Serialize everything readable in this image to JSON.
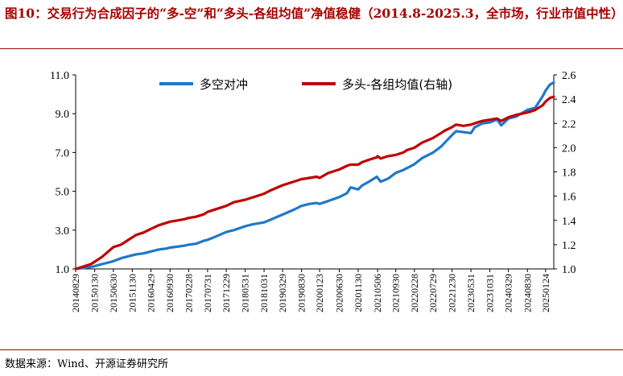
{
  "title": "图10：交易行为合成因子的“多-空”和“多头-各组均值”净值稳健（2014.8-2025.3，全市场，行业市值中性）",
  "source": "数据来源：Wind、开源证券研究所",
  "chart_data": {
    "type": "line",
    "x_ticks": [
      "20140829",
      "20150130",
      "20150630",
      "20151130",
      "20160429",
      "20160930",
      "20170228",
      "20170731",
      "20171229",
      "20180531",
      "20181031",
      "20190329",
      "20190830",
      "20200123",
      "20200630",
      "20201130",
      "20210506",
      "20210930",
      "20220228",
      "20220729",
      "20221230",
      "20230531",
      "20231031",
      "20240329",
      "20240830",
      "20250124"
    ],
    "x_range": [
      "20140829",
      "20250331"
    ],
    "y_left": {
      "range": [
        1.0,
        11.0
      ],
      "ticks": [
        1.0,
        3.0,
        5.0,
        7.0,
        9.0,
        11.0
      ]
    },
    "y_right": {
      "range": [
        1.0,
        2.6
      ],
      "ticks": [
        1.0,
        1.2,
        1.4,
        1.6,
        1.8,
        2.0,
        2.2,
        2.4,
        2.6
      ]
    },
    "grid": false,
    "legend_position": "top",
    "series": [
      {
        "name": "多空对冲",
        "axis": "left",
        "color": "#1f78c8",
        "points": [
          [
            "20140829",
            1.0
          ],
          [
            "20141031",
            1.05
          ],
          [
            "20141231",
            1.1
          ],
          [
            "20150130",
            1.15
          ],
          [
            "20150331",
            1.25
          ],
          [
            "20150630",
            1.4
          ],
          [
            "20150831",
            1.55
          ],
          [
            "20151030",
            1.65
          ],
          [
            "20151130",
            1.7
          ],
          [
            "20151231",
            1.75
          ],
          [
            "20160229",
            1.8
          ],
          [
            "20160429",
            1.9
          ],
          [
            "20160630",
            2.0
          ],
          [
            "20160831",
            2.05
          ],
          [
            "20160930",
            2.1
          ],
          [
            "20161130",
            2.15
          ],
          [
            "20170126",
            2.2
          ],
          [
            "20170228",
            2.25
          ],
          [
            "20170428",
            2.3
          ],
          [
            "20170630",
            2.45
          ],
          [
            "20170731",
            2.5
          ],
          [
            "20170929",
            2.65
          ],
          [
            "20171229",
            2.9
          ],
          [
            "20180228",
            3.0
          ],
          [
            "20180531",
            3.2
          ],
          [
            "20180731",
            3.3
          ],
          [
            "20181031",
            3.4
          ],
          [
            "20181228",
            3.55
          ],
          [
            "20190329",
            3.8
          ],
          [
            "20190628",
            4.05
          ],
          [
            "20190830",
            4.25
          ],
          [
            "20191031",
            4.35
          ],
          [
            "20191231",
            4.4
          ],
          [
            "20200123",
            4.35
          ],
          [
            "20200331",
            4.5
          ],
          [
            "20200630",
            4.7
          ],
          [
            "20200831",
            4.9
          ],
          [
            "20200930",
            5.2
          ],
          [
            "20201130",
            5.1
          ],
          [
            "20201231",
            5.3
          ],
          [
            "20210226",
            5.5
          ],
          [
            "20210430",
            5.75
          ],
          [
            "20210506",
            5.7
          ],
          [
            "20210531",
            5.5
          ],
          [
            "20210730",
            5.65
          ],
          [
            "20210930",
            5.95
          ],
          [
            "20211130",
            6.1
          ],
          [
            "20211231",
            6.2
          ],
          [
            "20220228",
            6.4
          ],
          [
            "20220429",
            6.7
          ],
          [
            "20220729",
            7.0
          ],
          [
            "20220930",
            7.3
          ],
          [
            "20221031",
            7.5
          ],
          [
            "20221230",
            7.9
          ],
          [
            "20230131",
            8.1
          ],
          [
            "20230331",
            8.05
          ],
          [
            "20230531",
            8.0
          ],
          [
            "20230630",
            8.3
          ],
          [
            "20230831",
            8.5
          ],
          [
            "20231031",
            8.55
          ],
          [
            "20231229",
            8.7
          ],
          [
            "20240131",
            8.4
          ],
          [
            "20240329",
            8.75
          ],
          [
            "20240531",
            8.85
          ],
          [
            "20240830",
            9.2
          ],
          [
            "20241031",
            9.3
          ],
          [
            "20241231",
            9.9
          ],
          [
            "20250124",
            10.2
          ],
          [
            "20250228",
            10.5
          ],
          [
            "20250331",
            10.6
          ]
        ]
      },
      {
        "name": "多头-各组均值(右轴)",
        "axis": "right",
        "color": "#c00000",
        "points": [
          [
            "20140829",
            1.0
          ],
          [
            "20141031",
            1.02
          ],
          [
            "20141231",
            1.04
          ],
          [
            "20150130",
            1.06
          ],
          [
            "20150331",
            1.1
          ],
          [
            "20150630",
            1.18
          ],
          [
            "20150831",
            1.2
          ],
          [
            "20151030",
            1.24
          ],
          [
            "20151130",
            1.26
          ],
          [
            "20151231",
            1.28
          ],
          [
            "20160229",
            1.3
          ],
          [
            "20160429",
            1.33
          ],
          [
            "20160630",
            1.36
          ],
          [
            "20160831",
            1.38
          ],
          [
            "20160930",
            1.39
          ],
          [
            "20161130",
            1.4
          ],
          [
            "20170126",
            1.41
          ],
          [
            "20170228",
            1.42
          ],
          [
            "20170428",
            1.43
          ],
          [
            "20170630",
            1.45
          ],
          [
            "20170731",
            1.47
          ],
          [
            "20170929",
            1.49
          ],
          [
            "20171229",
            1.52
          ],
          [
            "20180228",
            1.55
          ],
          [
            "20180531",
            1.57
          ],
          [
            "20180731",
            1.59
          ],
          [
            "20181031",
            1.62
          ],
          [
            "20181228",
            1.65
          ],
          [
            "20190329",
            1.69
          ],
          [
            "20190628",
            1.72
          ],
          [
            "20190830",
            1.74
          ],
          [
            "20191031",
            1.75
          ],
          [
            "20191231",
            1.76
          ],
          [
            "20200123",
            1.75
          ],
          [
            "20200331",
            1.79
          ],
          [
            "20200630",
            1.82
          ],
          [
            "20200831",
            1.85
          ],
          [
            "20200930",
            1.86
          ],
          [
            "20201130",
            1.86
          ],
          [
            "20201231",
            1.88
          ],
          [
            "20210226",
            1.9
          ],
          [
            "20210430",
            1.92
          ],
          [
            "20210506",
            1.93
          ],
          [
            "20210531",
            1.91
          ],
          [
            "20210730",
            1.93
          ],
          [
            "20210930",
            1.94
          ],
          [
            "20211130",
            1.96
          ],
          [
            "20211231",
            1.98
          ],
          [
            "20220228",
            2.0
          ],
          [
            "20220429",
            2.04
          ],
          [
            "20220729",
            2.08
          ],
          [
            "20220930",
            2.12
          ],
          [
            "20221031",
            2.14
          ],
          [
            "20221230",
            2.17
          ],
          [
            "20230131",
            2.19
          ],
          [
            "20230331",
            2.18
          ],
          [
            "20230531",
            2.19
          ],
          [
            "20230630",
            2.2
          ],
          [
            "20230831",
            2.22
          ],
          [
            "20231031",
            2.23
          ],
          [
            "20231229",
            2.24
          ],
          [
            "20240131",
            2.22
          ],
          [
            "20240329",
            2.25
          ],
          [
            "20240531",
            2.27
          ],
          [
            "20240830",
            2.29
          ],
          [
            "20241031",
            2.31
          ],
          [
            "20241231",
            2.35
          ],
          [
            "20250124",
            2.38
          ],
          [
            "20250228",
            2.41
          ],
          [
            "20250331",
            2.42
          ]
        ]
      }
    ]
  }
}
